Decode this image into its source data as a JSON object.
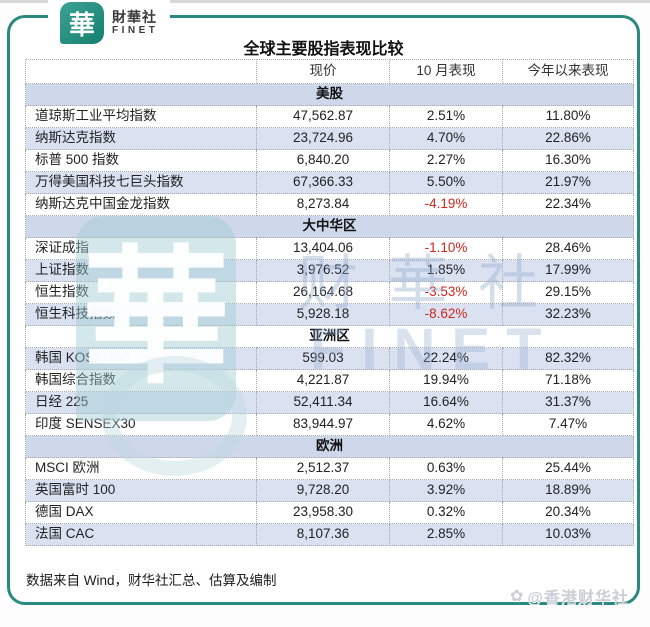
{
  "brand": {
    "logo_char": "華",
    "name_cn": "財華社",
    "name_en": "FINET"
  },
  "watermark": {
    "logo_char": "華",
    "text_cn": "财華社",
    "text_en": "FINET"
  },
  "publisher_badge": {
    "icon_glyph": "✿",
    "text": "@香港财华社"
  },
  "colors": {
    "accent_teal": "#2B8A80",
    "negative_red": "#D0261C",
    "shaded_row": "#DAE2F2",
    "section_row": "#CFD8EA"
  },
  "chart_data": {
    "type": "table",
    "title": "全球主要股指表现比较",
    "source": "数据来自 Wind，财华社汇总、估算及编制",
    "columns": [
      "",
      "现价",
      "10 月表现",
      "今年以来表现"
    ],
    "sections": [
      {
        "name": "美股",
        "shaded": true,
        "rows": [
          {
            "label": "道琼斯工业平均指数",
            "price": "47,562.87",
            "oct": "2.51%",
            "ytd": "11.80%",
            "shaded": false
          },
          {
            "label": "纳斯达克指数",
            "price": "23,724.96",
            "oct": "4.70%",
            "ytd": "22.86%",
            "shaded": true
          },
          {
            "label": "标普 500 指数",
            "price": "6,840.20",
            "oct": "2.27%",
            "ytd": "16.30%",
            "shaded": false
          },
          {
            "label": "万得美国科技七巨头指数",
            "price": "67,366.33",
            "oct": "5.50%",
            "ytd": "21.97%",
            "shaded": true
          },
          {
            "label": "纳斯达克中国金龙指数",
            "price": "8,273.84",
            "oct": "-4.19%",
            "ytd": "22.34%",
            "shaded": false
          }
        ]
      },
      {
        "name": "大中华区",
        "shaded": true,
        "rows": [
          {
            "label": "深证成指",
            "price": "13,404.06",
            "oct": "-1.10%",
            "ytd": "28.46%",
            "shaded": false
          },
          {
            "label": "上证指数",
            "price": "3,976.52",
            "oct": "1.85%",
            "ytd": "17.99%",
            "shaded": true
          },
          {
            "label": "恒生指数",
            "price": "26,164.68",
            "oct": "-3.53%",
            "ytd": "29.15%",
            "shaded": false
          },
          {
            "label": "恒生科技指数",
            "price": "5,928.18",
            "oct": "-8.62%",
            "ytd": "32.23%",
            "shaded": true
          }
        ]
      },
      {
        "name": "亚洲区",
        "shaded": false,
        "rows": [
          {
            "label": "韩国 KOSPI200",
            "price": "599.03",
            "oct": "22.24%",
            "ytd": "82.32%",
            "shaded": true
          },
          {
            "label": "韩国综合指数",
            "price": "4,221.87",
            "oct": "19.94%",
            "ytd": "71.18%",
            "shaded": false
          },
          {
            "label": "日经 225",
            "price": "52,411.34",
            "oct": "16.64%",
            "ytd": "31.37%",
            "shaded": true
          },
          {
            "label": "印度 SENSEX30",
            "price": "83,944.97",
            "oct": "4.62%",
            "ytd": "7.47%",
            "shaded": false
          }
        ]
      },
      {
        "name": "欧洲",
        "shaded": true,
        "rows": [
          {
            "label": "MSCI 欧洲",
            "price": "2,512.37",
            "oct": "0.63%",
            "ytd": "25.44%",
            "shaded": false
          },
          {
            "label": "英国富时 100",
            "price": "9,728.20",
            "oct": "3.92%",
            "ytd": "18.89%",
            "shaded": true
          },
          {
            "label": "德国 DAX",
            "price": "23,958.30",
            "oct": "0.32%",
            "ytd": "20.34%",
            "shaded": false
          },
          {
            "label": "法国 CAC",
            "price": "8,107.36",
            "oct": "2.85%",
            "ytd": "10.03%",
            "shaded": true
          }
        ]
      }
    ]
  }
}
